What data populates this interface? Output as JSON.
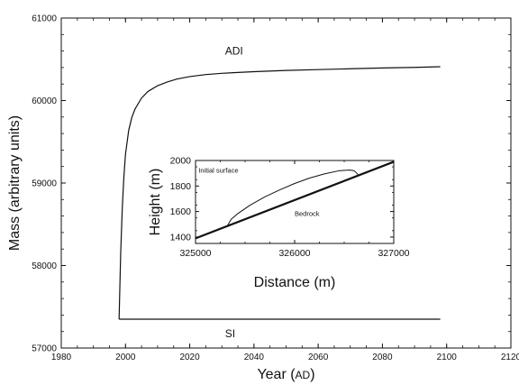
{
  "chart_data": [
    {
      "id": "main",
      "type": "line",
      "title": "",
      "xlabel": "Year",
      "xlabel_unit": "AD",
      "ylabel": "Mass (arbitrary units)",
      "xlim": [
        1980,
        2120
      ],
      "ylim": [
        57000,
        61000
      ],
      "xticks": [
        1980,
        2000,
        2020,
        2040,
        2060,
        2080,
        2100,
        2120
      ],
      "yticks": [
        57000,
        58000,
        59000,
        60000,
        61000
      ],
      "grid": false,
      "series": [
        {
          "name": "ADI",
          "x": [
            1998,
            1998.5,
            1999,
            1999.5,
            2000,
            2001,
            2002,
            2003,
            2005,
            2007,
            2010,
            2013,
            2016,
            2020,
            2025,
            2030,
            2040,
            2050,
            2060,
            2070,
            2080,
            2090,
            2098
          ],
          "y": [
            57350,
            58150,
            58700,
            59080,
            59350,
            59640,
            59800,
            59900,
            60030,
            60110,
            60180,
            60225,
            60260,
            60290,
            60315,
            60330,
            60350,
            60365,
            60375,
            60385,
            60395,
            60402,
            60410
          ]
        },
        {
          "name": "SI",
          "x": [
            1998,
            2098
          ],
          "y": [
            57350,
            57350
          ]
        }
      ],
      "annotations": [
        {
          "text": "ADI",
          "x": 2031,
          "y": 60560
        },
        {
          "text": "SI",
          "x": 2031,
          "y": 57130
        }
      ]
    },
    {
      "id": "inset",
      "type": "line",
      "title": "",
      "xlabel": "Distance (m)",
      "ylabel": "Height (m)",
      "xlim": [
        325000,
        327000
      ],
      "ylim": [
        1350,
        2000
      ],
      "xticks": [
        325000,
        326000,
        327000
      ],
      "yticks": [
        1400,
        1600,
        1800,
        2000
      ],
      "grid": false,
      "series": [
        {
          "name": "Bedrock",
          "x": [
            325000,
            327000
          ],
          "y": [
            1390,
            1990
          ]
        },
        {
          "name": "Initial surface",
          "x": [
            325320,
            325360,
            325420,
            325550,
            325700,
            325850,
            326000,
            326150,
            326300,
            326450,
            326560,
            326600,
            326640
          ],
          "y": [
            1486,
            1540,
            1580,
            1650,
            1715,
            1770,
            1820,
            1862,
            1895,
            1920,
            1925,
            1920,
            1890
          ]
        }
      ],
      "annotations": [
        {
          "text": "Initial surface",
          "x": 325030,
          "y": 1905
        },
        {
          "text": "Bedrock",
          "x": 326000,
          "y": 1565
        }
      ]
    }
  ]
}
